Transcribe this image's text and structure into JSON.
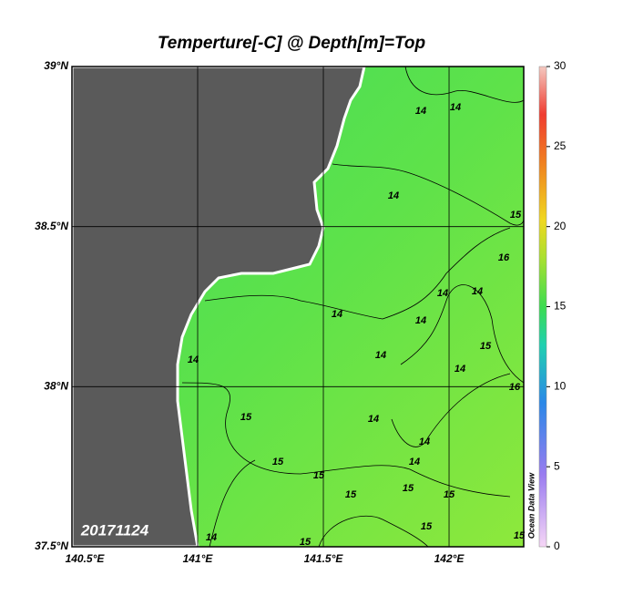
{
  "map": {
    "title": "Temperture[-C] @ Depth[m]=Top",
    "date": "20171124",
    "credit": "Ocean Data View",
    "lon_range": [
      140.5,
      142.297
    ],
    "lat_range": [
      37.5,
      39
    ],
    "lon_ticks": [
      {
        "value": 140.5,
        "label": "140.5°E"
      },
      {
        "value": 141,
        "label": "141°E"
      },
      {
        "value": 141.5,
        "label": "141.5°E"
      },
      {
        "value": 142,
        "label": "142°E"
      }
    ],
    "lat_ticks": [
      {
        "value": 39,
        "label": "39°N"
      },
      {
        "value": 38.5,
        "label": "38.5°N"
      },
      {
        "value": 38,
        "label": "38°N"
      },
      {
        "value": 37.5,
        "label": "37.5°N"
      }
    ],
    "colorbar": {
      "range": [
        0,
        30
      ],
      "ticks": [
        0,
        5,
        10,
        15,
        20,
        25,
        30
      ]
    },
    "contour_labels": [
      14,
      14,
      14,
      15,
      16,
      14,
      14,
      14,
      14,
      15,
      14,
      14,
      14,
      16,
      15,
      14,
      14,
      15,
      15,
      14,
      15,
      15,
      15,
      15,
      15,
      14,
      15
    ]
  }
}
